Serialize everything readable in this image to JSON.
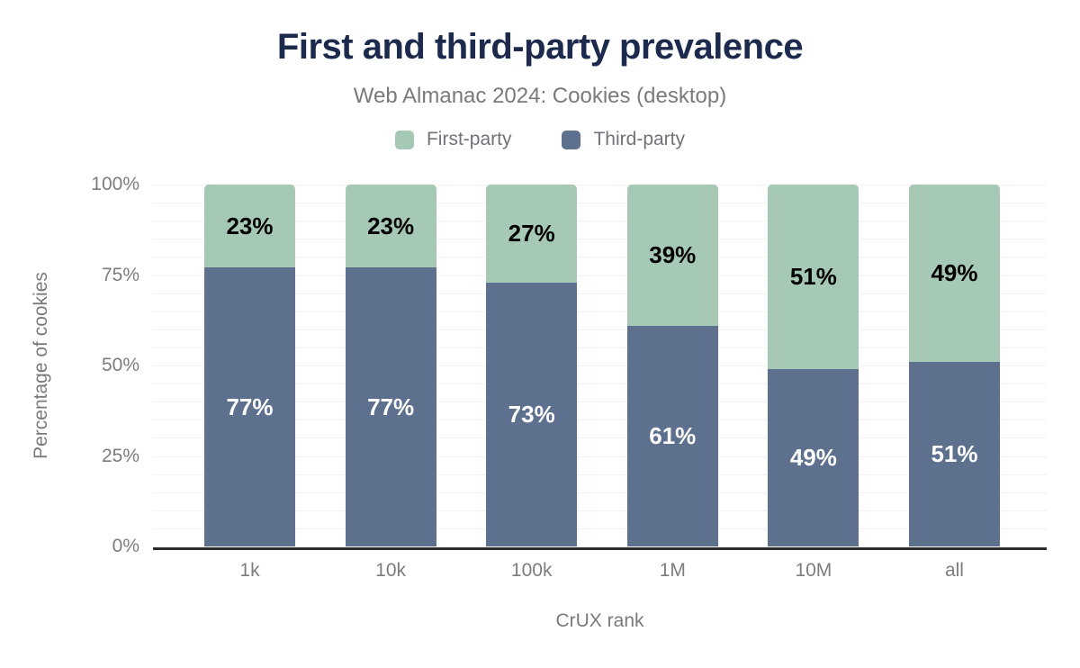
{
  "title": "First and third-party prevalence",
  "subtitle": "Web Almanac 2024: Cookies (desktop)",
  "legend": [
    {
      "label": "First-party",
      "color": "#a6c9b5"
    },
    {
      "label": "Third-party",
      "color": "#5d708d"
    }
  ],
  "chart_data": {
    "type": "bar",
    "stacked": true,
    "title": "First and third-party prevalence",
    "subtitle": "Web Almanac 2024: Cookies (desktop)",
    "categories": [
      "1k",
      "10k",
      "100k",
      "1M",
      "10M",
      "all"
    ],
    "series": [
      {
        "name": "First-party",
        "values": [
          23,
          23,
          27,
          39,
          51,
          49
        ],
        "color": "#a6c9b5",
        "label_color": "#000000"
      },
      {
        "name": "Third-party",
        "values": [
          77,
          77,
          73,
          61,
          49,
          51
        ],
        "color": "#5d708d",
        "label_color": "#ffffff"
      }
    ],
    "stack_order_top_to_bottom": [
      "First-party",
      "Third-party"
    ],
    "value_suffix": "%",
    "xlabel": "CrUX rank",
    "ylabel": "Percentage of cookies",
    "ylim": [
      0,
      100
    ],
    "y_ticks": [
      {
        "label": "0%",
        "value": 0
      },
      {
        "label": "25%",
        "value": 25
      },
      {
        "label": "50%",
        "value": 50
      },
      {
        "label": "75%",
        "value": 75
      },
      {
        "label": "100%",
        "value": 100
      }
    ],
    "y_minor_grid_step": 5,
    "grid": "horizontal",
    "legend_position": "top-center"
  },
  "colors": {
    "title": "#1c2b4d",
    "subtitle": "#7a7a7a",
    "axis_text": "#7d7d7d",
    "gridline": "#f2f2f2",
    "axis_line": "#2b2d30",
    "first_party": "#a6c9b5",
    "third_party": "#5d708d",
    "background": "#ffffff"
  }
}
